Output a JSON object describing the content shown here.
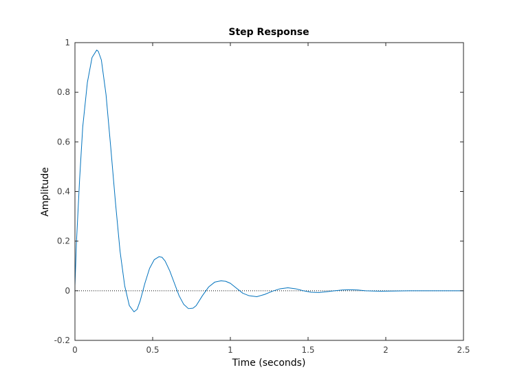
{
  "chart_data": {
    "type": "line",
    "title": "Step Response",
    "xlabel": "Time (seconds)",
    "ylabel": "Amplitude",
    "xlim": [
      0,
      2.5
    ],
    "ylim": [
      -0.2,
      1
    ],
    "xticks": [
      {
        "value": 0,
        "label": "0"
      },
      {
        "value": 0.5,
        "label": "0.5"
      },
      {
        "value": 1,
        "label": "1"
      },
      {
        "value": 1.5,
        "label": "1.5"
      },
      {
        "value": 2,
        "label": "2"
      },
      {
        "value": 2.5,
        "label": "2.5"
      }
    ],
    "yticks": [
      {
        "value": -0.2,
        "label": "-0.2"
      },
      {
        "value": 0,
        "label": "0"
      },
      {
        "value": 0.2,
        "label": "0.2"
      },
      {
        "value": 0.4,
        "label": "0.4"
      },
      {
        "value": 0.6,
        "label": "0.6"
      },
      {
        "value": 0.8,
        "label": "0.8"
      },
      {
        "value": 1,
        "label": "1"
      }
    ],
    "grid": false,
    "reference_line": {
      "y": 0,
      "style": "dotted",
      "color": "#000000"
    },
    "series": [
      {
        "color": "#0072bd",
        "x": [
          0,
          0.01,
          0.03,
          0.05,
          0.08,
          0.11,
          0.14,
          0.15,
          0.17,
          0.2,
          0.23,
          0.26,
          0.29,
          0.32,
          0.35,
          0.38,
          0.4,
          0.42,
          0.45,
          0.48,
          0.51,
          0.54,
          0.56,
          0.58,
          0.61,
          0.64,
          0.67,
          0.7,
          0.73,
          0.76,
          0.78,
          0.82,
          0.86,
          0.9,
          0.94,
          0.97,
          1.0,
          1.04,
          1.08,
          1.12,
          1.17,
          1.22,
          1.27,
          1.32,
          1.37,
          1.42,
          1.47,
          1.52,
          1.57,
          1.62,
          1.67,
          1.72,
          1.77,
          1.82,
          1.87,
          1.92,
          1.97,
          2.05,
          2.15,
          2.3,
          2.5
        ],
        "values": [
          0.02,
          0.2,
          0.45,
          0.66,
          0.84,
          0.94,
          0.97,
          0.965,
          0.93,
          0.79,
          0.58,
          0.36,
          0.16,
          0.02,
          -0.06,
          -0.085,
          -0.075,
          -0.04,
          0.03,
          0.09,
          0.125,
          0.137,
          0.135,
          0.12,
          0.08,
          0.03,
          -0.02,
          -0.055,
          -0.072,
          -0.07,
          -0.06,
          -0.02,
          0.015,
          0.035,
          0.04,
          0.038,
          0.03,
          0.01,
          -0.01,
          -0.02,
          -0.024,
          -0.015,
          -0.002,
          0.008,
          0.012,
          0.008,
          0.0,
          -0.006,
          -0.007,
          -0.004,
          0.0,
          0.003,
          0.004,
          0.003,
          0.0,
          -0.001,
          -0.002,
          -0.001,
          0.0,
          0.0,
          0.0
        ]
      }
    ]
  }
}
